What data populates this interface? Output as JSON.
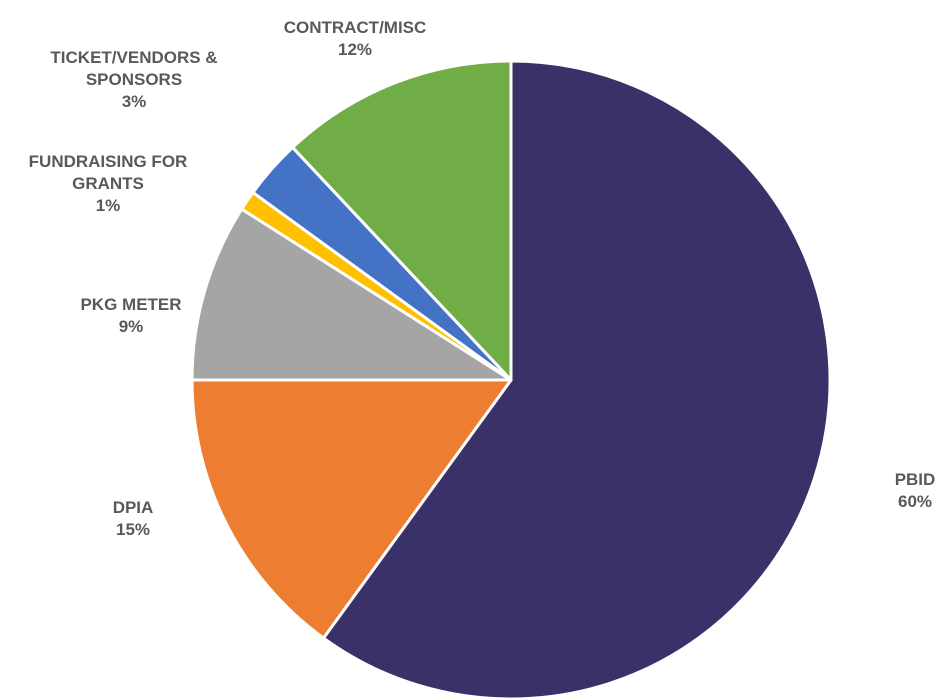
{
  "chart_data": {
    "type": "pie",
    "title": "",
    "slices": [
      {
        "name": "PBID",
        "label_lines": [
          "PBID"
        ],
        "value": 60,
        "value_label": "60%",
        "color": "#3b3169"
      },
      {
        "name": "DPIA",
        "label_lines": [
          "DPIA"
        ],
        "value": 15,
        "value_label": "15%",
        "color": "#ed7d31"
      },
      {
        "name": "PKG METER",
        "label_lines": [
          "PKG METER"
        ],
        "value": 9,
        "value_label": "9%",
        "color": "#a5a5a5"
      },
      {
        "name": "FUNDRAISING FOR GRANTS",
        "label_lines": [
          "FUNDRAISING FOR",
          "GRANTS"
        ],
        "value": 1,
        "value_label": "1%",
        "color": "#ffc000"
      },
      {
        "name": "TICKET/VENDORS & SPONSORS",
        "label_lines": [
          "TICKET/VENDORS &",
          "SPONSORS"
        ],
        "value": 3,
        "value_label": "3%",
        "color": "#4472c4"
      },
      {
        "name": "CONTRACT/MISC",
        "label_lines": [
          "CONTRACT/MISC"
        ],
        "value": 12,
        "value_label": "12%",
        "color": "#70ad47"
      }
    ],
    "start_angle_deg": 0,
    "direction": "clockwise",
    "legend": "none",
    "data_labels": "outside"
  }
}
